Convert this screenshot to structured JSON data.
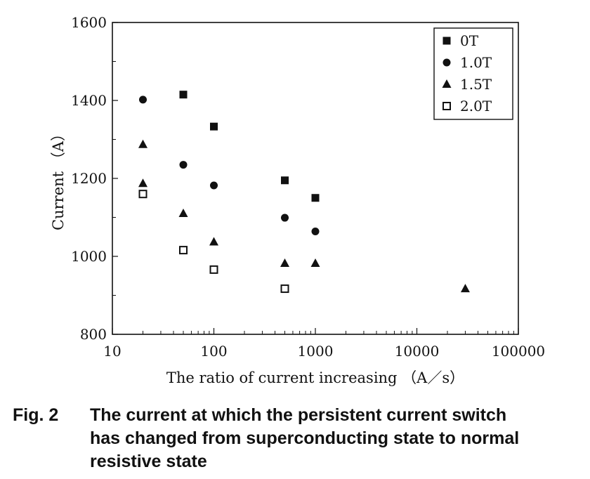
{
  "chart_data": {
    "type": "scatter",
    "title": "",
    "xlabel": "The ratio of current increasing （A／s）",
    "ylabel": "Current （A）",
    "xscale": "log",
    "xlim": [
      10,
      100000
    ],
    "ylim": [
      800,
      1600
    ],
    "xticks": [
      "10",
      "100",
      "1000",
      "10000",
      "100000"
    ],
    "yticks": [
      "800",
      "1000",
      "1200",
      "1400",
      "1600"
    ],
    "legend_position": "top-right",
    "grid": false,
    "series": [
      {
        "name": "0T",
        "marker": "filled-square",
        "points": [
          [
            50,
            1415
          ],
          [
            100,
            1333
          ],
          [
            500,
            1195
          ],
          [
            1000,
            1150
          ]
        ]
      },
      {
        "name": "1.0T",
        "marker": "filled-circle",
        "points": [
          [
            20,
            1402
          ],
          [
            50,
            1235
          ],
          [
            100,
            1182
          ],
          [
            500,
            1099
          ],
          [
            1000,
            1064
          ]
        ]
      },
      {
        "name": "1.5T",
        "marker": "filled-triangle",
        "points": [
          [
            20,
            1287
          ],
          [
            20,
            1187
          ],
          [
            50,
            1110
          ],
          [
            100,
            1037
          ],
          [
            500,
            982
          ],
          [
            1000,
            982
          ],
          [
            30000,
            917
          ]
        ]
      },
      {
        "name": "2.0T",
        "marker": "open-square",
        "points": [
          [
            20,
            1160
          ],
          [
            50,
            1016
          ],
          [
            100,
            966
          ],
          [
            500,
            917
          ]
        ]
      }
    ]
  },
  "caption": {
    "label": "Fig. 2",
    "lines": [
      "The current at which the persistent current switch",
      "has changed from superconducting state to normal",
      "resistive state"
    ]
  }
}
